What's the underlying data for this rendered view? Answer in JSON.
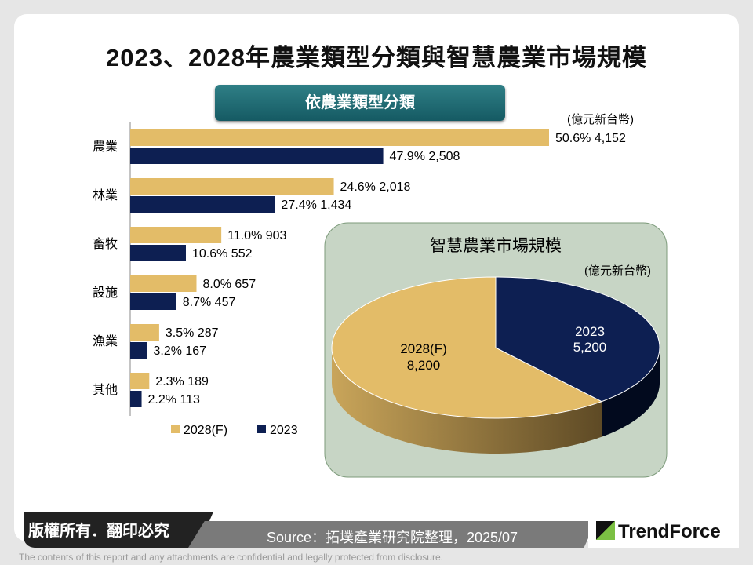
{
  "title": "2023、2028年農業類型分類與智慧農業市場規模",
  "footer": {
    "copyright": "版權所有．翻印必究",
    "source": "Source：拓墣產業研究院整理，2025/07",
    "logo": "TrendForce",
    "disclaimer": "The contents of this report and any attachments are confidential and legally protected from disclosure."
  },
  "colors": {
    "2028": "#e3bc68",
    "2023": "#0d1f52",
    "pie_panel": "#c7d5c5"
  },
  "chart_data": [
    {
      "type": "bar",
      "orientation": "horizontal",
      "title": "依農業類型分類",
      "unit": "(億元新台幣)",
      "categories": [
        "農業",
        "林業",
        "畜牧",
        "設施",
        "漁業",
        "其他"
      ],
      "series": [
        {
          "name": "2028(F)",
          "values": [
            4152,
            2018,
            903,
            657,
            287,
            189
          ],
          "shares": [
            "50.6%",
            "24.6%",
            "11.0%",
            "8.0%",
            "3.5%",
            "2.3%"
          ],
          "labels": [
            "50.6%  4,152",
            "24.6%  2,018",
            "11.0%  903",
            "8.0%  657",
            "3.5%  287",
            "2.3%  189"
          ]
        },
        {
          "name": "2023",
          "values": [
            2508,
            1434,
            552,
            457,
            167,
            113
          ],
          "shares": [
            "47.9%",
            "27.4%",
            "10.6%",
            "8.7%",
            "3.2%",
            "2.2%"
          ],
          "labels": [
            "47.9%  2,508",
            "27.4%  1,434",
            "10.6%  552",
            "8.7%  457",
            "3.2%  167",
            "2.2%  113"
          ]
        }
      ],
      "legend": "bottom"
    },
    {
      "type": "pie",
      "style": "3d",
      "title": "智慧農業市場規模",
      "unit": "(億元新台幣)",
      "slices": [
        {
          "name": "2023",
          "value": 5200,
          "label": "5,200"
        },
        {
          "name": "2028(F)",
          "value": 8200,
          "label": "8,200"
        }
      ]
    }
  ]
}
